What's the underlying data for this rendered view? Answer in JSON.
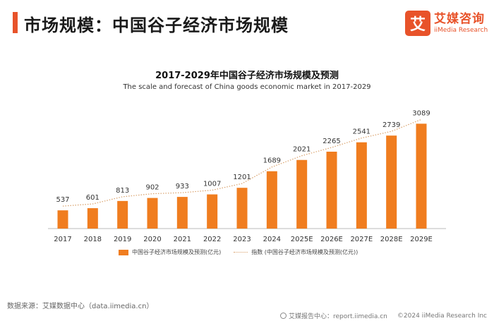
{
  "header": {
    "title": "市场规模：中国谷子经济市场规模"
  },
  "logo": {
    "mark": "艾",
    "name_cn": "艾媒咨询",
    "name_en": "iiMedia Research"
  },
  "chart_data": {
    "type": "bar",
    "title": "2017-2029年中国谷子经济市场规模及预测",
    "subtitle": "The scale and forecast of China goods economic market in 2017-2029",
    "categories": [
      "2017",
      "2018",
      "2019",
      "2020",
      "2021",
      "2022",
      "2023",
      "2024",
      "2025E",
      "2026E",
      "2027E",
      "2028E",
      "2029E"
    ],
    "series": [
      {
        "name": "中国谷子经济市场规模及预测(亿元)",
        "type": "bar",
        "values": [
          537,
          601,
          813,
          902,
          933,
          1007,
          1201,
          1689,
          2021,
          2265,
          2541,
          2739,
          3089
        ]
      },
      {
        "name": "指数 (中国谷子经济市场规模及预测(亿元))",
        "type": "dotted-trend"
      }
    ],
    "ylim": [
      0,
      3200
    ],
    "grid": false,
    "legend_position": "bottom"
  },
  "colors": {
    "accent": "#e8532a",
    "bar": "#f07d1f",
    "trend": "#d9a06a"
  },
  "footer": {
    "source": "数据来源：艾媒数据中心（data.iimedia.cn）",
    "report_center": "艾媒报告中心：report.iimedia.cn",
    "copyright": "©2024  iiMedia Research Inc"
  }
}
